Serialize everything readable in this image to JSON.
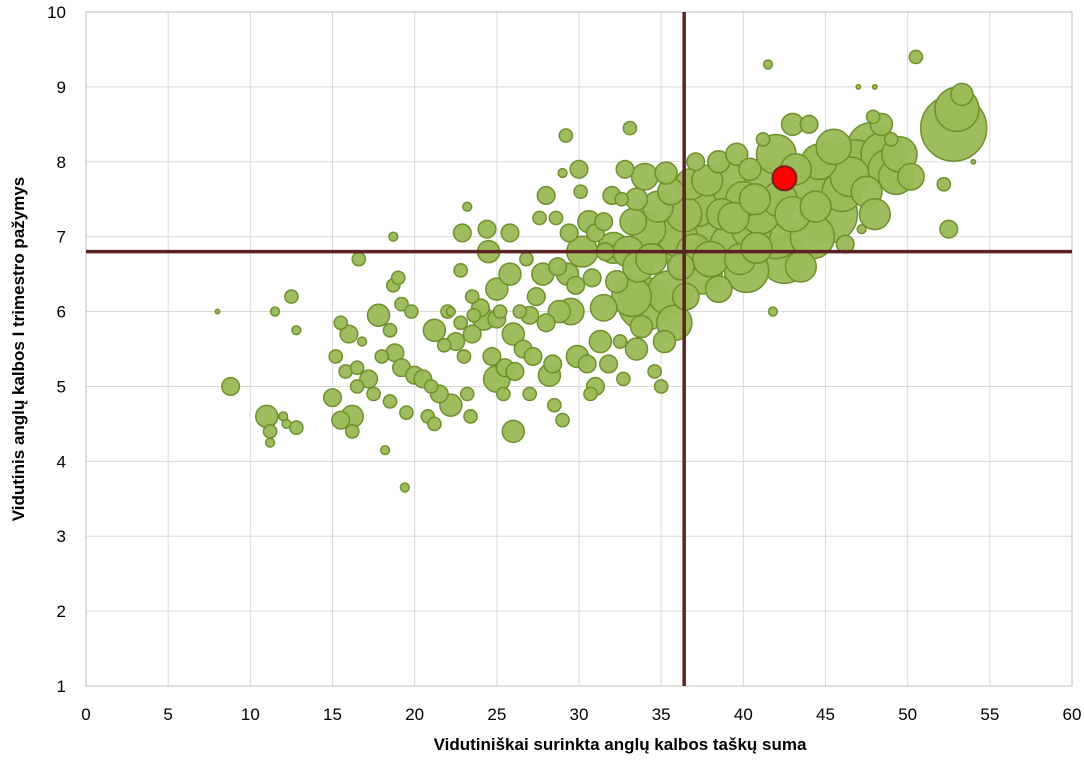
{
  "chart_data": {
    "type": "scatter",
    "title": "",
    "xlabel": "Vidutiniškai surinkta anglų kalbos taškų suma",
    "ylabel": "Vidutinis anglų kalbos I trimestro pažymys",
    "xlim": [
      0,
      60
    ],
    "ylim": [
      1,
      10
    ],
    "xticks": [
      "0",
      "5",
      "10",
      "15",
      "20",
      "25",
      "30",
      "35",
      "40",
      "45",
      "50",
      "55",
      "60"
    ],
    "yticks": [
      "1",
      "2",
      "3",
      "4",
      "5",
      "6",
      "7",
      "8",
      "9",
      "10"
    ],
    "grid": true,
    "legend": "none",
    "reference_lines": {
      "x": 36.4,
      "y": 6.8
    },
    "colors": {
      "bubble": "#9bbb59",
      "bubble_edge": "#6f8f2c",
      "highlight": "#ff0000",
      "reference": "#5b2323"
    },
    "series": [
      {
        "points": [
          [
            8.8,
            5.0,
            4
          ],
          [
            8.0,
            6.0,
            1
          ],
          [
            11.0,
            4.6,
            5
          ],
          [
            11.2,
            4.4,
            3
          ],
          [
            11.2,
            4.25,
            2
          ],
          [
            11.5,
            6.0,
            2
          ],
          [
            12.0,
            4.6,
            2
          ],
          [
            12.2,
            4.5,
            2
          ],
          [
            12.5,
            6.2,
            3
          ],
          [
            12.8,
            5.75,
            2
          ],
          [
            12.8,
            4.45,
            3
          ],
          [
            15.0,
            4.85,
            4
          ],
          [
            15.2,
            5.4,
            3
          ],
          [
            15.5,
            5.85,
            3
          ],
          [
            15.5,
            4.55,
            4
          ],
          [
            15.8,
            5.2,
            3
          ],
          [
            16.0,
            5.7,
            4
          ],
          [
            16.2,
            4.6,
            5
          ],
          [
            16.2,
            4.4,
            3
          ],
          [
            16.5,
            5.25,
            3
          ],
          [
            16.6,
            6.7,
            3
          ],
          [
            16.8,
            5.6,
            2
          ],
          [
            16.5,
            5.0,
            3
          ],
          [
            17.2,
            5.1,
            4
          ],
          [
            17.5,
            4.9,
            3
          ],
          [
            17.8,
            5.95,
            5
          ],
          [
            18.0,
            5.4,
            3
          ],
          [
            18.2,
            4.15,
            2
          ],
          [
            18.5,
            5.75,
            3
          ],
          [
            18.5,
            4.8,
            3
          ],
          [
            18.7,
            6.35,
            3
          ],
          [
            18.7,
            7.0,
            2
          ],
          [
            18.8,
            5.45,
            4
          ],
          [
            19.0,
            6.45,
            3
          ],
          [
            19.2,
            5.25,
            4
          ],
          [
            19.4,
            3.65,
            2
          ],
          [
            19.5,
            4.65,
            3
          ],
          [
            19.2,
            6.1,
            3
          ],
          [
            19.8,
            6.0,
            3
          ],
          [
            20.0,
            5.15,
            4
          ],
          [
            20.5,
            5.1,
            4
          ],
          [
            20.8,
            4.6,
            3
          ],
          [
            21.0,
            5.0,
            3
          ],
          [
            21.2,
            4.5,
            3
          ],
          [
            21.5,
            4.9,
            4
          ],
          [
            21.2,
            5.75,
            5
          ],
          [
            21.8,
            5.55,
            3
          ],
          [
            22.0,
            6.0,
            3
          ],
          [
            22.2,
            4.75,
            5
          ],
          [
            22.2,
            6.0,
            2
          ],
          [
            22.5,
            5.6,
            4
          ],
          [
            22.8,
            5.85,
            3
          ],
          [
            23.0,
            5.4,
            3
          ],
          [
            22.8,
            6.55,
            3
          ],
          [
            23.2,
            4.9,
            3
          ],
          [
            22.9,
            7.05,
            4
          ],
          [
            23.4,
            4.6,
            3
          ],
          [
            23.5,
            5.7,
            4
          ],
          [
            23.5,
            6.2,
            3
          ],
          [
            23.6,
            5.95,
            3
          ],
          [
            23.2,
            7.4,
            2
          ],
          [
            24.0,
            6.05,
            4
          ],
          [
            24.2,
            5.9,
            5
          ],
          [
            24.4,
            7.1,
            4
          ],
          [
            24.5,
            6.8,
            5
          ],
          [
            24.7,
            5.4,
            4
          ],
          [
            25.0,
            5.1,
            6
          ],
          [
            25.0,
            5.9,
            4
          ],
          [
            25.0,
            6.3,
            5
          ],
          [
            25.2,
            6.0,
            3
          ],
          [
            25.4,
            4.9,
            3
          ],
          [
            25.5,
            5.25,
            4
          ],
          [
            25.8,
            7.05,
            4
          ],
          [
            25.8,
            6.5,
            5
          ],
          [
            26.0,
            5.7,
            5
          ],
          [
            26.0,
            4.4,
            5
          ],
          [
            26.1,
            5.2,
            4
          ],
          [
            26.4,
            6.0,
            3
          ],
          [
            26.6,
            5.5,
            4
          ],
          [
            26.8,
            6.7,
            3
          ],
          [
            27.0,
            4.9,
            3
          ],
          [
            27.0,
            5.95,
            4
          ],
          [
            27.2,
            5.4,
            4
          ],
          [
            27.4,
            6.2,
            4
          ],
          [
            27.6,
            7.25,
            3
          ],
          [
            27.8,
            6.5,
            5
          ],
          [
            28.0,
            7.55,
            4
          ],
          [
            28.0,
            5.85,
            4
          ],
          [
            28.2,
            5.15,
            5
          ],
          [
            28.4,
            5.3,
            4
          ],
          [
            28.5,
            4.75,
            3
          ],
          [
            28.6,
            7.25,
            3
          ],
          [
            28.7,
            6.6,
            4
          ],
          [
            28.8,
            6.0,
            5
          ],
          [
            29.0,
            7.85,
            2
          ],
          [
            29.0,
            4.55,
            3
          ],
          [
            29.2,
            8.35,
            3
          ],
          [
            29.3,
            6.5,
            5
          ],
          [
            29.4,
            7.05,
            4
          ],
          [
            29.5,
            6.0,
            6
          ],
          [
            29.8,
            6.35,
            4
          ],
          [
            29.9,
            5.4,
            5
          ],
          [
            30.0,
            7.9,
            4
          ],
          [
            30.1,
            7.6,
            3
          ],
          [
            30.2,
            6.8,
            7
          ],
          [
            30.5,
            5.3,
            4
          ],
          [
            30.6,
            7.2,
            5
          ],
          [
            30.7,
            4.9,
            3
          ],
          [
            30.8,
            6.45,
            4
          ],
          [
            31.0,
            5.0,
            4
          ],
          [
            31.0,
            7.05,
            4
          ],
          [
            31.3,
            5.6,
            5
          ],
          [
            31.5,
            7.2,
            4
          ],
          [
            31.5,
            6.05,
            6
          ],
          [
            31.6,
            6.8,
            4
          ],
          [
            31.8,
            5.3,
            4
          ],
          [
            32.0,
            7.55,
            4
          ],
          [
            32.1,
            6.85,
            7
          ],
          [
            32.3,
            6.4,
            5
          ],
          [
            32.5,
            5.6,
            3
          ],
          [
            32.6,
            7.5,
            3
          ],
          [
            32.7,
            5.1,
            3
          ],
          [
            32.8,
            7.9,
            4
          ],
          [
            33.0,
            6.8,
            7
          ],
          [
            33.1,
            8.45,
            3
          ],
          [
            33.2,
            6.2,
            9
          ],
          [
            33.3,
            7.2,
            6
          ],
          [
            33.5,
            5.5,
            5
          ],
          [
            33.5,
            7.5,
            5
          ],
          [
            33.6,
            6.6,
            7
          ],
          [
            33.8,
            5.8,
            5
          ],
          [
            34.0,
            7.8,
            6
          ],
          [
            34.0,
            6.1,
            12
          ],
          [
            34.2,
            7.1,
            8
          ],
          [
            34.4,
            6.7,
            7
          ],
          [
            34.6,
            5.2,
            3
          ],
          [
            34.8,
            7.4,
            7
          ],
          [
            35.0,
            5.0,
            3
          ],
          [
            35.0,
            6.9,
            9
          ],
          [
            35.2,
            5.6,
            5
          ],
          [
            35.3,
            7.85,
            5
          ],
          [
            35.5,
            6.25,
            10
          ],
          [
            35.6,
            7.6,
            6
          ],
          [
            35.8,
            5.85,
            8
          ],
          [
            36.0,
            7.0,
            9
          ],
          [
            36.2,
            6.6,
            6
          ],
          [
            36.4,
            7.3,
            8
          ],
          [
            36.5,
            6.2,
            6
          ],
          [
            36.8,
            7.7,
            7
          ],
          [
            37.0,
            6.8,
            8
          ],
          [
            37.1,
            8.0,
            4
          ],
          [
            37.2,
            7.4,
            9
          ],
          [
            37.5,
            6.5,
            9
          ],
          [
            37.6,
            7.05,
            11
          ],
          [
            37.8,
            7.75,
            7
          ],
          [
            38.0,
            6.7,
            8
          ],
          [
            38.2,
            7.5,
            10
          ],
          [
            38.5,
            6.3,
            6
          ],
          [
            38.5,
            8.0,
            5
          ],
          [
            38.7,
            7.3,
            7
          ],
          [
            39.0,
            7.7,
            10
          ],
          [
            39.2,
            6.9,
            9
          ],
          [
            39.4,
            7.25,
            7
          ],
          [
            39.6,
            8.1,
            5
          ],
          [
            39.8,
            6.7,
            7
          ],
          [
            40.0,
            7.5,
            8
          ],
          [
            40.2,
            6.55,
            10
          ],
          [
            40.4,
            7.9,
            5
          ],
          [
            40.5,
            7.1,
            9
          ],
          [
            40.7,
            7.5,
            7
          ],
          [
            40.8,
            6.85,
            7
          ],
          [
            41.0,
            7.3,
            9
          ],
          [
            41.2,
            8.3,
            3
          ],
          [
            41.4,
            7.7,
            10
          ],
          [
            41.5,
            9.3,
            2
          ],
          [
            41.8,
            6.0,
            2
          ],
          [
            42.0,
            7.0,
            10
          ],
          [
            42.0,
            8.1,
            9
          ],
          [
            42.2,
            7.5,
            8
          ],
          [
            42.5,
            6.7,
            11
          ],
          [
            43.0,
            8.5,
            5
          ],
          [
            43.0,
            7.3,
            8
          ],
          [
            43.2,
            7.9,
            7
          ],
          [
            43.5,
            6.6,
            7
          ],
          [
            43.8,
            7.7,
            9
          ],
          [
            44.0,
            8.5,
            4
          ],
          [
            44.2,
            7.0,
            10
          ],
          [
            44.4,
            7.4,
            7
          ],
          [
            44.6,
            8.0,
            8
          ],
          [
            45.0,
            7.9,
            12
          ],
          [
            45.2,
            7.3,
            13
          ],
          [
            45.5,
            8.2,
            8
          ],
          [
            46.0,
            7.6,
            9
          ],
          [
            46.2,
            6.9,
            4
          ],
          [
            46.5,
            7.8,
            9
          ],
          [
            46.8,
            8.0,
            10
          ],
          [
            47.2,
            7.1,
            2
          ],
          [
            47.0,
            9.0,
            1
          ],
          [
            47.5,
            7.6,
            7
          ],
          [
            47.8,
            8.2,
            11
          ],
          [
            47.9,
            8.6,
            3
          ],
          [
            48.0,
            9.0,
            1
          ],
          [
            48.0,
            7.3,
            7
          ],
          [
            48.4,
            8.5,
            5
          ],
          [
            48.5,
            8.1,
            10
          ],
          [
            48.8,
            7.9,
            9
          ],
          [
            49.0,
            8.3,
            3
          ],
          [
            49.3,
            7.8,
            8
          ],
          [
            49.5,
            8.1,
            8
          ],
          [
            50.2,
            7.8,
            6
          ],
          [
            50.5,
            9.4,
            3
          ],
          [
            52.2,
            7.7,
            3
          ],
          [
            52.5,
            7.1,
            4
          ],
          [
            52.8,
            8.45,
            15
          ],
          [
            53.0,
            8.7,
            10
          ],
          [
            53.3,
            8.9,
            5
          ],
          [
            54.0,
            8.0,
            1
          ]
        ]
      }
    ],
    "highlight": {
      "x": 42.5,
      "y": 7.78
    }
  }
}
